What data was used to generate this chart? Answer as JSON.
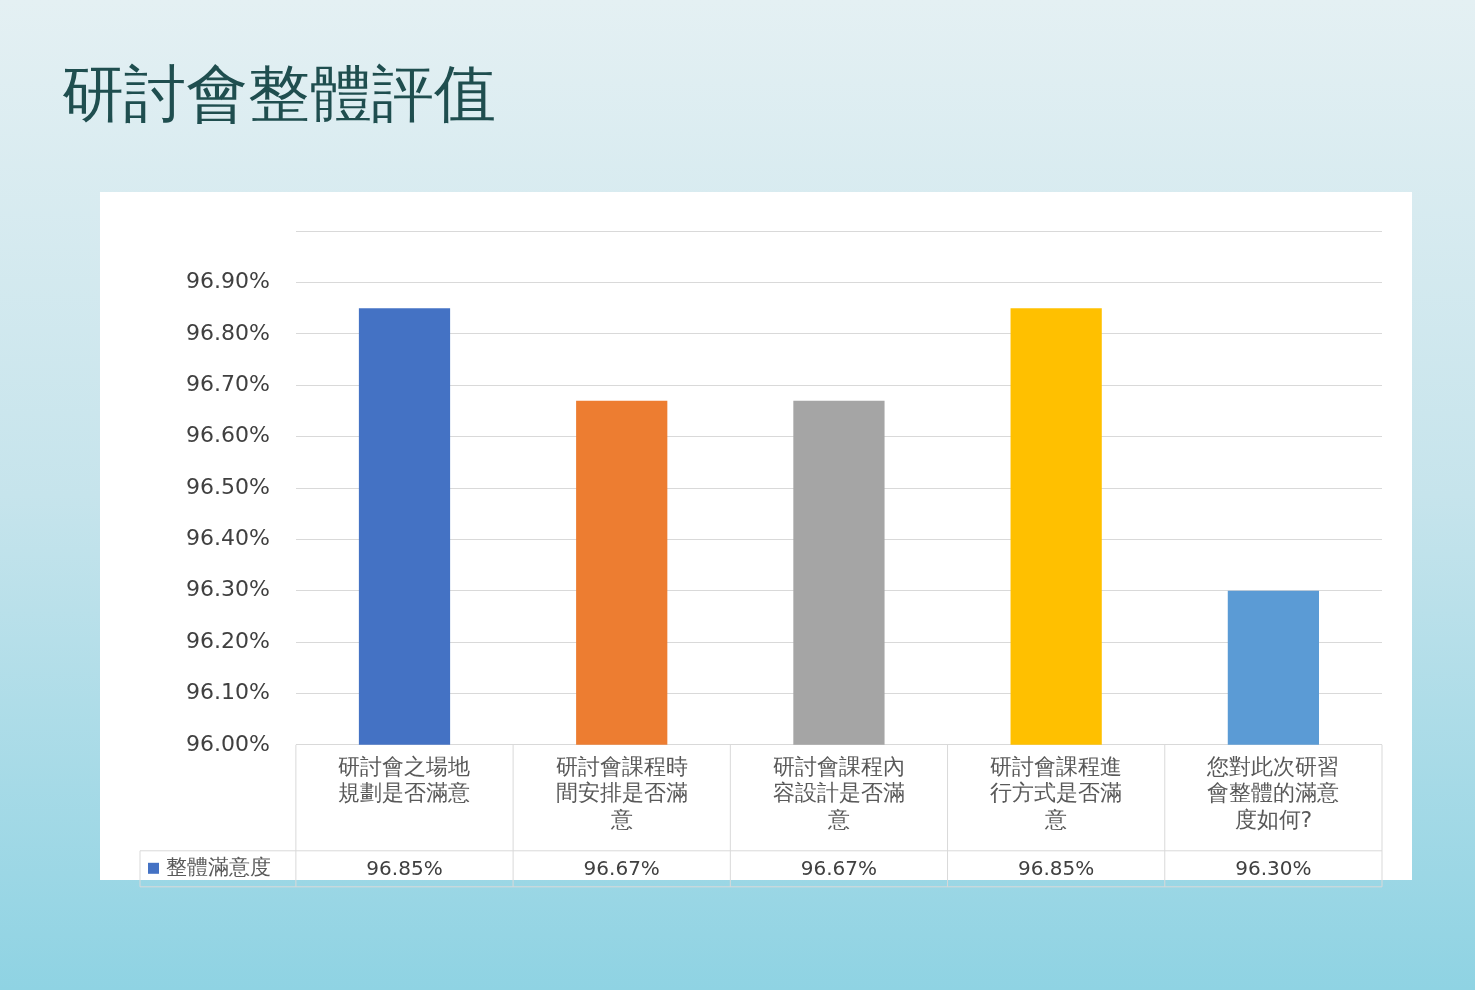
{
  "chart_data": {
    "type": "bar",
    "title": "研討會整體評值",
    "categories": [
      "研討會之場地規劃是否滿意",
      "研討會課程時間安排是否滿意",
      "研討會課程內容設計是否滿意",
      "研討會課程進行方式是否滿意",
      "您對此次研習會整體的滿意度如何?"
    ],
    "series": [
      {
        "name": "整體滿意度",
        "color": "#4472c4",
        "colors": [
          "#4472c4",
          "#ed7d31",
          "#a5a5a5",
          "#ffc000",
          "#5b9bd5"
        ],
        "values": [
          96.85,
          96.67,
          96.67,
          96.85,
          96.3
        ],
        "value_labels": [
          "96.85%",
          "96.67%",
          "96.67%",
          "96.85%",
          "96.30%"
        ]
      }
    ],
    "ylim": [
      96,
      97
    ],
    "yticks": [
      {
        "value": 96,
        "label": "96.00%"
      },
      {
        "value": 96.1,
        "label": "96.10%"
      },
      {
        "value": 96.2,
        "label": "96.20%"
      },
      {
        "value": 96.3,
        "label": "96.30%"
      },
      {
        "value": 96.4,
        "label": "96.40%"
      },
      {
        "value": 96.5,
        "label": "96.50%"
      },
      {
        "value": 96.6,
        "label": "96.60%"
      },
      {
        "value": 96.7,
        "label": "96.70%"
      },
      {
        "value": 96.8,
        "label": "96.80%"
      },
      {
        "value": 96.9,
        "label": "96.90%"
      },
      {
        "value": 97,
        "label": null
      }
    ],
    "grid": "y",
    "legend": "bottom"
  }
}
